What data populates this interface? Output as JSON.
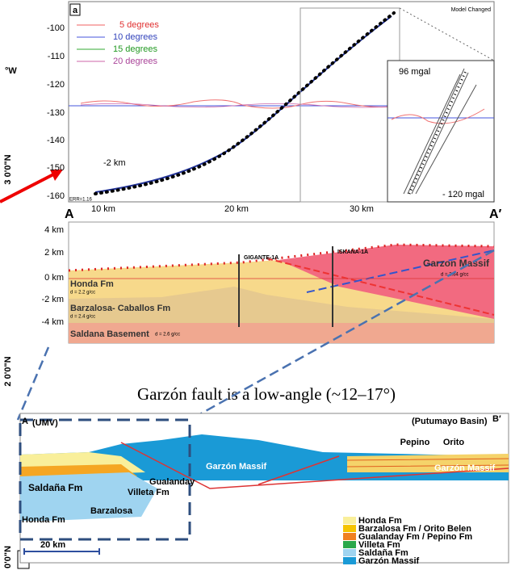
{
  "panel_a": {
    "label": "a",
    "note": "Model Changed",
    "legend": [
      "5 degrees",
      "10 degrees",
      "15 degrees",
      "20 degrees"
    ],
    "yticks": [
      "-100",
      "-110",
      "-120",
      "-130",
      "-140",
      "-150",
      "-160"
    ],
    "xticks": [
      "10 km",
      "20 km",
      "30 km"
    ],
    "annotation": "-2 km",
    "error": "ERR=1.16",
    "inset_top": "96 mgal",
    "inset_bottom": "- 120 mgal"
  },
  "section": {
    "left": "A",
    "right": "A′",
    "depth_ticks": [
      "4 km",
      "2 km",
      "0 km",
      "-2 km",
      "-4 km"
    ],
    "wells": [
      "GIGANTE-1A",
      "ISKANA-1A"
    ],
    "units": [
      {
        "name": "Honda Fm",
        "density": "d = 2.2 g/cc"
      },
      {
        "name": "Barzalosa- Caballos Fm",
        "density": "d = 2.4 g/cc"
      },
      {
        "name": "Saldana Basement",
        "density": "d = 2.6 g/cc"
      },
      {
        "name": "Garzon Massif",
        "density": "d = 2.64 g/cc"
      }
    ]
  },
  "caption": "Garzón fault is a low-angle (~12–17°)",
  "section_b": {
    "left": "A",
    "left_region": "(UMV)",
    "right_region": "(Putumayo Basin)",
    "right": "B′",
    "wells": [
      "Pepino",
      "Orito"
    ],
    "labels": [
      "Garzón Massif",
      "Garzón Massif",
      "Saldaña Fm",
      "Villeta Fm",
      "Gualanday",
      "Barzalosa",
      "Honda Fm"
    ],
    "scale": "20 km",
    "legend": [
      "Honda Fm",
      "Barzalosa Fm / Orito Belen",
      "Gualanday Fm / Pepino Fm",
      "Villeta Fm",
      "Saldaña Fm",
      "Garzón Massif"
    ]
  },
  "map_labels": [
    "°W",
    "3 0'0\"N",
    "2 0'0\"N",
    "0'0\"N",
    "a"
  ]
}
